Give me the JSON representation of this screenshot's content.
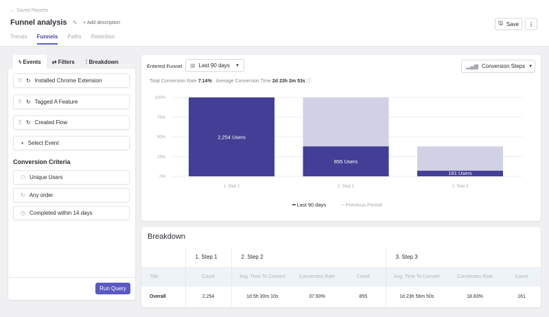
{
  "header": {
    "back_label": "Saved Reports",
    "title": "Funnel analysis",
    "add_description": "Add description",
    "save_label": "Save",
    "tabs": [
      {
        "label": "Trends"
      },
      {
        "label": "Funnels",
        "active": true
      },
      {
        "label": "Paths"
      },
      {
        "label": "Retention"
      }
    ]
  },
  "left": {
    "tabs": [
      {
        "label": "Events"
      },
      {
        "label": "Filters"
      },
      {
        "label": "Breakdown"
      }
    ],
    "events": [
      "Installed Chrome Extension",
      "Tagged A Feature",
      "Created Flow"
    ],
    "select_event": "Select Event",
    "criteria_title": "Conversion Criteria",
    "criteria": [
      "Unique Users",
      "Any order",
      "Completed within 14 days"
    ],
    "run_query": "Run Query"
  },
  "chart_panel": {
    "entered_label": "Entered Funnel",
    "date_range": "Last 90 days",
    "view": "Conversion Steps",
    "total_rate_label": "Total Conversion Rate",
    "total_rate": "7.14%",
    "avg_time_label": "Average Conversion Time",
    "avg_time": "2d 23h 2m 53s",
    "legend": [
      "Last 90 days",
      "Previous Period"
    ]
  },
  "chart_data": {
    "type": "bar",
    "categories": [
      "1. Step 1",
      "2. Step 2",
      "3. Step 3"
    ],
    "series": [
      {
        "name": "Last 90 days",
        "values": [
          100,
          37.93,
          7.14
        ],
        "labels": [
          "2,254 Users",
          "855 Users",
          "161 Users"
        ]
      }
    ],
    "background_values": [
      100,
      100,
      37.93
    ],
    "yticks": [
      "100%",
      "75%",
      "50%",
      "25%",
      "0%"
    ],
    "ylim": [
      0,
      100
    ],
    "grid": true,
    "legend": "bottom",
    "colors": {
      "primary": "#433f96",
      "background": "#d1d1e6"
    }
  },
  "breakdown": {
    "title": "Breakdown",
    "steps": [
      "1. Step 1",
      "2. Step 2",
      "3. Step 3"
    ],
    "columns": [
      "Title",
      "Count",
      "Avg. Time To Convert",
      "Conversion Rate",
      "Count",
      "Avg. Time To Convert",
      "Conversion Rate",
      "Count"
    ],
    "row": [
      "Overall",
      "2,254",
      "1d 5h 30m 10s",
      "37.93%",
      "855",
      "1d 23h 56m 50s",
      "18.83%",
      "161"
    ]
  }
}
